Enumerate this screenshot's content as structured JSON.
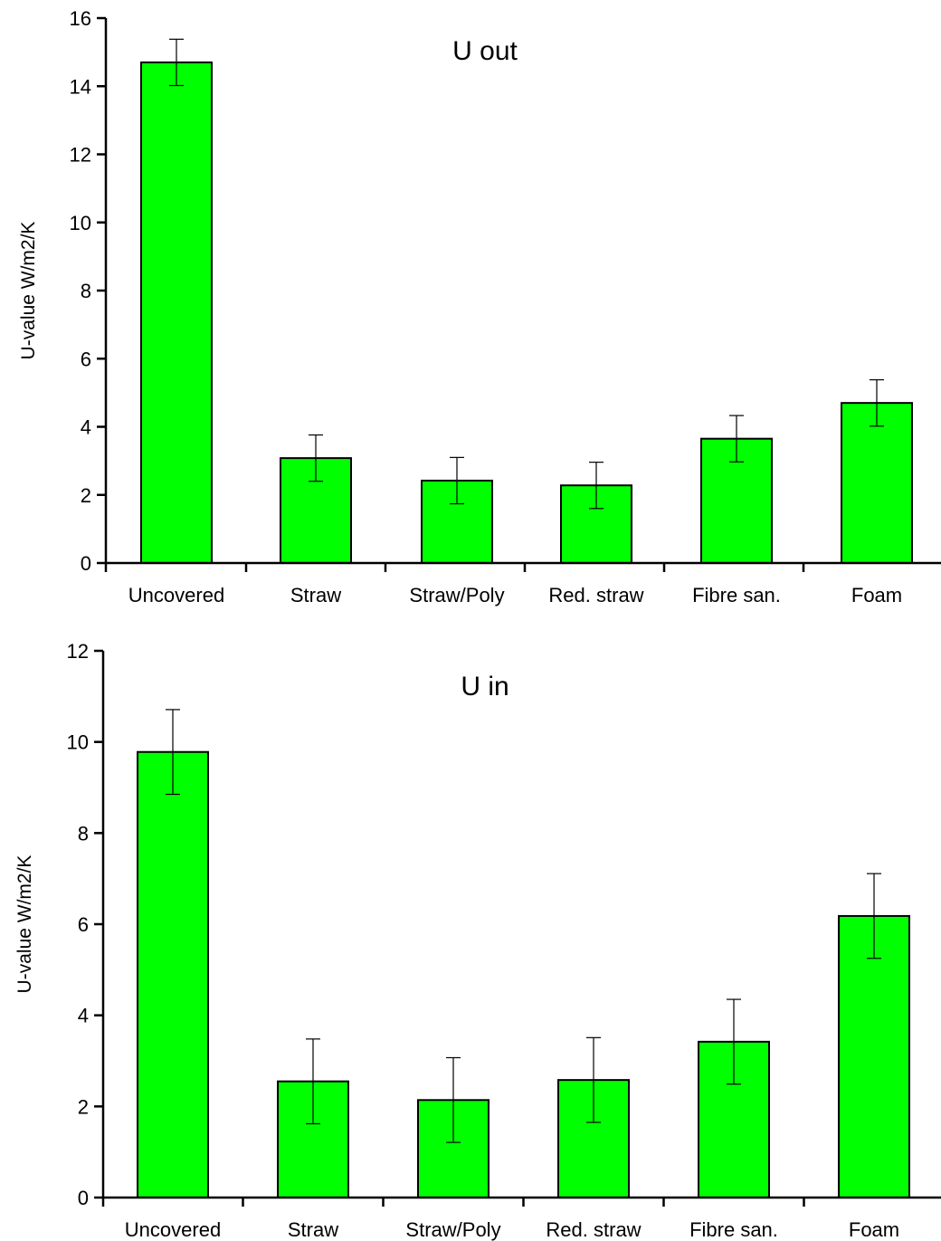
{
  "chart_data": [
    {
      "type": "bar",
      "title": "U out",
      "xlabel": "",
      "ylabel": "U-value W/m2/K",
      "categories": [
        "Uncovered",
        "Straw",
        "Straw/Poly",
        "Red. straw",
        "Fibre san.",
        "Foam"
      ],
      "values": [
        14.7,
        3.08,
        2.42,
        2.28,
        3.65,
        4.7
      ],
      "error_low": [
        14.02,
        2.4,
        1.74,
        1.6,
        2.97,
        4.02
      ],
      "error_high": [
        15.38,
        3.76,
        3.1,
        2.96,
        4.33,
        5.38
      ],
      "ylim": [
        0,
        16
      ],
      "yticks": [
        0,
        2,
        4,
        6,
        8,
        10,
        12,
        14,
        16
      ],
      "bar_color": "#00ff00",
      "grid": false
    },
    {
      "type": "bar",
      "title": "U in",
      "xlabel": "",
      "ylabel": "U-value W/m2/K",
      "categories": [
        "Uncovered",
        "Straw",
        "Straw/Poly",
        "Red. straw",
        "Fibre san.",
        "Foam"
      ],
      "values": [
        9.78,
        2.55,
        2.14,
        2.58,
        3.42,
        6.18
      ],
      "error_low": [
        8.85,
        1.62,
        1.21,
        1.65,
        2.49,
        5.25
      ],
      "error_high": [
        10.71,
        3.48,
        3.07,
        3.51,
        4.35,
        7.11
      ],
      "ylim": [
        0,
        12
      ],
      "yticks": [
        0,
        2,
        4,
        6,
        8,
        10,
        12
      ],
      "bar_color": "#00ff00",
      "grid": false
    }
  ]
}
